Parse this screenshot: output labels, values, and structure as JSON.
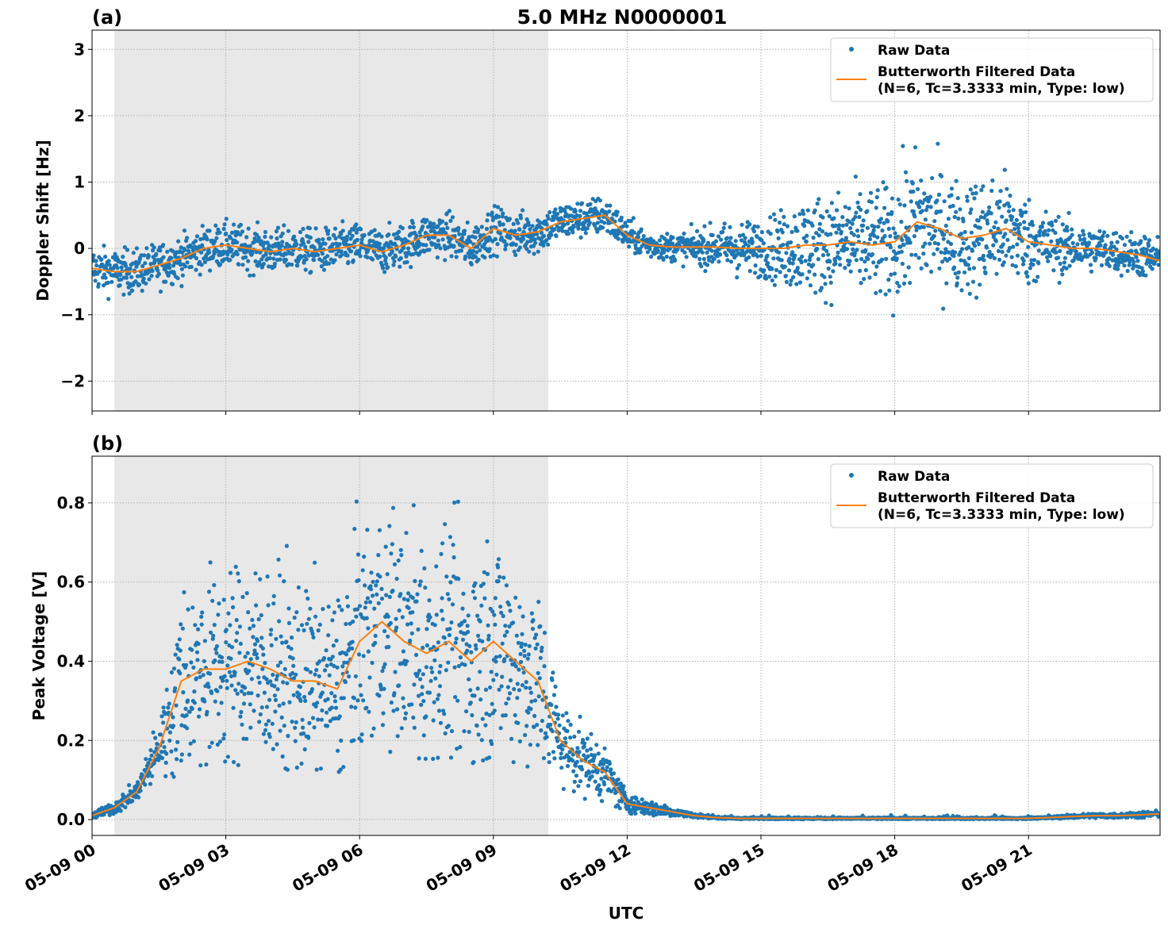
{
  "title": "5.0 MHz N0000001",
  "xlabel": "UTC",
  "colors": {
    "raw": "#1f77b4",
    "filtered": "#ff7f0e",
    "shade": "#e8e8e8",
    "grid": "#b0b0b0"
  },
  "legend": {
    "raw": "Raw Data",
    "filtered_line1": "Butterworth Filtered Data",
    "filtered_line2": "(N=6, Tc=3.3333 min, Type: low)",
    "placement": "top-right"
  },
  "x_ticks": [
    0,
    3,
    6,
    9,
    12,
    15,
    18,
    21
  ],
  "x_tick_labels": [
    "05-09 00",
    "05-09 03",
    "05-09 06",
    "05-09 09",
    "05-09 12",
    "05-09 15",
    "05-09 18",
    "05-09 21"
  ],
  "chart_data": [
    {
      "type": "scatter",
      "panel_label": "(a)",
      "title": "5.0 MHz N0000001",
      "xlabel": "",
      "ylabel": "Doppler Shift [Hz]",
      "xlim": [
        0,
        23.95
      ],
      "ylim": [
        -2.45,
        3.29
      ],
      "y_ticks": [
        -2,
        -1,
        0,
        1,
        2,
        3
      ],
      "y_tick_labels": [
        "−2",
        "−1",
        "0",
        "1",
        "2",
        "3"
      ],
      "grid": true,
      "shaded_interval_hours": [
        0.5,
        10.23
      ],
      "x_hours": [
        0,
        0.5,
        1,
        1.5,
        2,
        2.5,
        3,
        3.5,
        4,
        4.5,
        5,
        5.5,
        6,
        6.5,
        7,
        7.5,
        8,
        8.5,
        9,
        9.5,
        10,
        10.5,
        11,
        11.5,
        12,
        12.5,
        13,
        13.5,
        14,
        14.5,
        15,
        15.5,
        16,
        16.5,
        17,
        17.5,
        18,
        18.5,
        19,
        19.5,
        20,
        20.5,
        21,
        21.5,
        22,
        22.5,
        23,
        23.5,
        24
      ],
      "filtered": [
        -0.3,
        -0.35,
        -0.35,
        -0.25,
        -0.15,
        0.0,
        0.05,
        0.0,
        -0.05,
        0.0,
        -0.05,
        0.0,
        0.05,
        -0.05,
        0.05,
        0.2,
        0.2,
        0.0,
        0.3,
        0.2,
        0.25,
        0.4,
        0.45,
        0.5,
        0.2,
        0.05,
        0.02,
        0.02,
        0.02,
        0.0,
        0.0,
        0.0,
        0.05,
        0.05,
        0.1,
        0.05,
        0.1,
        0.4,
        0.3,
        0.15,
        0.2,
        0.3,
        0.1,
        0.05,
        0.0,
        0.0,
        -0.05,
        -0.1,
        -0.2
      ],
      "raw_spread": [
        0.4,
        0.4,
        0.4,
        0.4,
        0.4,
        0.4,
        0.4,
        0.4,
        0.4,
        0.4,
        0.4,
        0.4,
        0.4,
        0.4,
        0.4,
        0.4,
        0.4,
        0.4,
        0.4,
        0.4,
        0.4,
        0.35,
        0.35,
        0.35,
        0.3,
        0.25,
        0.25,
        0.3,
        0.4,
        0.5,
        0.5,
        0.7,
        0.9,
        0.9,
        1.0,
        1.0,
        1.1,
        1.3,
        1.1,
        1.0,
        1.1,
        1.0,
        0.8,
        0.6,
        0.45,
        0.4,
        0.4,
        0.4,
        0.4
      ]
    },
    {
      "type": "scatter",
      "panel_label": "(b)",
      "xlabel": "UTC",
      "ylabel": "Peak Voltage [V]",
      "xlim": [
        0,
        23.95
      ],
      "ylim": [
        -0.04,
        0.918
      ],
      "y_ticks": [
        0.0,
        0.2,
        0.4,
        0.6,
        0.8
      ],
      "y_tick_labels": [
        "0.0",
        "0.2",
        "0.4",
        "0.6",
        "0.8"
      ],
      "grid": true,
      "shaded_interval_hours": [
        0.5,
        10.23
      ],
      "x_hours": [
        0,
        0.5,
        1,
        1.5,
        2,
        2.5,
        3,
        3.5,
        4,
        4.5,
        5,
        5.5,
        6,
        6.5,
        7,
        7.5,
        8,
        8.5,
        9,
        9.5,
        10,
        10.5,
        11,
        11.5,
        12,
        12.5,
        13,
        13.5,
        14,
        14.5,
        15,
        15.5,
        16,
        16.5,
        17,
        17.5,
        18,
        18.5,
        19,
        19.5,
        20,
        20.5,
        21,
        21.5,
        22,
        22.5,
        23,
        23.5,
        24
      ],
      "filtered": [
        0.01,
        0.03,
        0.07,
        0.18,
        0.35,
        0.38,
        0.38,
        0.4,
        0.38,
        0.35,
        0.35,
        0.33,
        0.45,
        0.5,
        0.45,
        0.42,
        0.45,
        0.4,
        0.45,
        0.4,
        0.35,
        0.2,
        0.15,
        0.12,
        0.04,
        0.03,
        0.02,
        0.01,
        0.005,
        0.003,
        0.003,
        0.003,
        0.003,
        0.003,
        0.003,
        0.003,
        0.003,
        0.003,
        0.003,
        0.003,
        0.003,
        0.003,
        0.003,
        0.005,
        0.008,
        0.01,
        0.01,
        0.012,
        0.015
      ],
      "raw_spread": [
        0.01,
        0.02,
        0.03,
        0.08,
        0.3,
        0.3,
        0.3,
        0.32,
        0.3,
        0.3,
        0.28,
        0.28,
        0.35,
        0.35,
        0.35,
        0.35,
        0.35,
        0.35,
        0.35,
        0.33,
        0.3,
        0.12,
        0.1,
        0.08,
        0.03,
        0.025,
        0.015,
        0.008,
        0.004,
        0.003,
        0.003,
        0.003,
        0.003,
        0.003,
        0.003,
        0.003,
        0.003,
        0.003,
        0.003,
        0.003,
        0.003,
        0.003,
        0.003,
        0.004,
        0.006,
        0.008,
        0.008,
        0.01,
        0.01
      ]
    }
  ]
}
